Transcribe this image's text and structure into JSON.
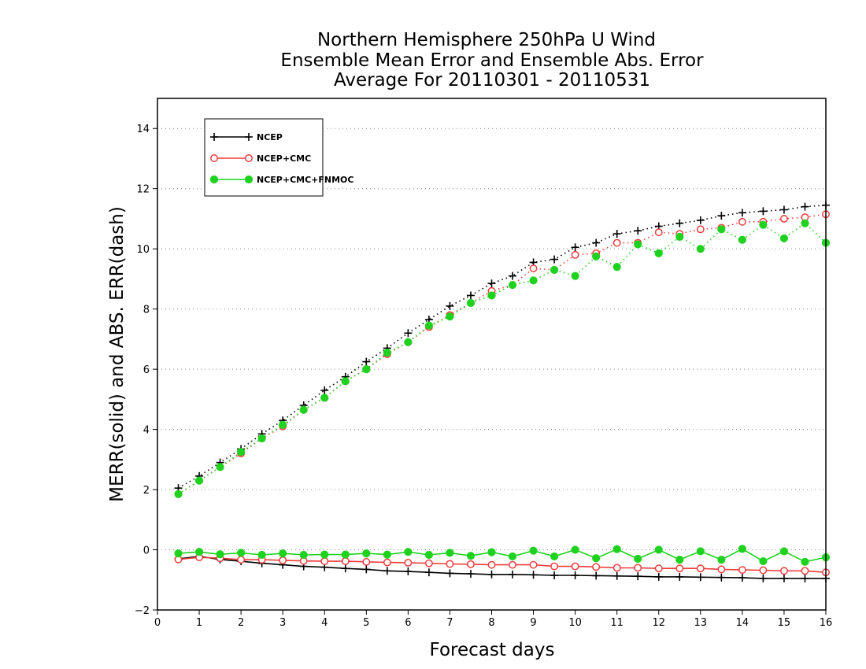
{
  "chart_data": {
    "type": "line",
    "title": [
      "Northern Hemisphere 250hPa U Wind",
      "Ensemble Mean Error and Ensemble Abs. Error",
      "Average For 20110301 - 20110531"
    ],
    "xlabel": "Forecast days",
    "ylabel": "MERR(solid) and ABS. ERR(dash)",
    "xlim": [
      0,
      16
    ],
    "ylim": [
      -2,
      15
    ],
    "xticks": [
      0,
      1,
      2,
      3,
      4,
      5,
      6,
      7,
      8,
      9,
      10,
      11,
      12,
      13,
      14,
      15,
      16
    ],
    "yticks": [
      -2,
      0,
      2,
      4,
      6,
      8,
      10,
      12,
      14
    ],
    "grid": "horizontal dotted",
    "legend_position": "top-left",
    "x": [
      0.5,
      1,
      1.5,
      2,
      2.5,
      3,
      3.5,
      4,
      4.5,
      5,
      5.5,
      6,
      6.5,
      7,
      7.5,
      8,
      8.5,
      9,
      9.5,
      10,
      10.5,
      11,
      11.5,
      12,
      12.5,
      13,
      13.5,
      14,
      14.5,
      15,
      15.5,
      16
    ],
    "series": [
      {
        "name": "NCEP",
        "color": "#000000",
        "marker": "plus",
        "abs_err": [
          2.05,
          2.45,
          2.9,
          3.35,
          3.85,
          4.3,
          4.8,
          5.3,
          5.75,
          6.25,
          6.7,
          7.2,
          7.65,
          8.1,
          8.45,
          8.85,
          9.1,
          9.55,
          9.65,
          10.05,
          10.2,
          10.5,
          10.6,
          10.75,
          10.85,
          10.95,
          11.1,
          11.2,
          11.25,
          11.3,
          11.4,
          11.45
        ],
        "mean_err": [
          -0.3,
          -0.22,
          -0.32,
          -0.38,
          -0.45,
          -0.5,
          -0.55,
          -0.58,
          -0.62,
          -0.65,
          -0.7,
          -0.72,
          -0.75,
          -0.78,
          -0.8,
          -0.82,
          -0.82,
          -0.83,
          -0.85,
          -0.85,
          -0.86,
          -0.87,
          -0.88,
          -0.9,
          -0.9,
          -0.91,
          -0.92,
          -0.93,
          -0.95,
          -0.95,
          -0.95,
          -0.95
        ]
      },
      {
        "name": "NCEP+CMC",
        "color": "#f03c3c",
        "marker": "open-circle",
        "abs_err": [
          1.85,
          2.3,
          2.75,
          3.2,
          3.7,
          4.1,
          4.65,
          5.05,
          5.6,
          6.0,
          6.5,
          6.9,
          7.4,
          7.8,
          8.2,
          8.6,
          8.8,
          9.35,
          9.3,
          9.8,
          9.85,
          10.2,
          10.2,
          10.55,
          10.5,
          10.65,
          10.7,
          10.9,
          10.9,
          11.0,
          11.05,
          11.15
        ],
        "mean_err": [
          -0.32,
          -0.25,
          -0.28,
          -0.33,
          -0.33,
          -0.35,
          -0.37,
          -0.38,
          -0.38,
          -0.4,
          -0.42,
          -0.43,
          -0.45,
          -0.47,
          -0.48,
          -0.5,
          -0.5,
          -0.5,
          -0.55,
          -0.55,
          -0.57,
          -0.6,
          -0.6,
          -0.62,
          -0.62,
          -0.62,
          -0.65,
          -0.67,
          -0.68,
          -0.7,
          -0.7,
          -0.75
        ]
      },
      {
        "name": "NCEP+CMC+FNMOC",
        "color": "#1fd21f",
        "marker": "filled-circle",
        "abs_err": [
          1.85,
          2.3,
          2.75,
          3.25,
          3.7,
          4.15,
          4.65,
          5.05,
          5.6,
          6.0,
          6.55,
          6.9,
          7.45,
          7.75,
          8.2,
          8.45,
          8.8,
          8.95,
          9.3,
          9.1,
          9.75,
          9.4,
          10.15,
          9.85,
          10.4,
          10.0,
          10.65,
          10.3,
          10.8,
          10.35,
          10.85,
          10.2
        ],
        "mean_err": [
          -0.12,
          -0.07,
          -0.15,
          -0.1,
          -0.17,
          -0.12,
          -0.17,
          -0.16,
          -0.16,
          -0.12,
          -0.16,
          -0.07,
          -0.17,
          -0.1,
          -0.2,
          -0.08,
          -0.22,
          -0.03,
          -0.22,
          0.0,
          -0.28,
          0.02,
          -0.3,
          0.0,
          -0.33,
          -0.05,
          -0.33,
          0.03,
          -0.38,
          -0.05,
          -0.4,
          -0.25
        ]
      }
    ]
  }
}
